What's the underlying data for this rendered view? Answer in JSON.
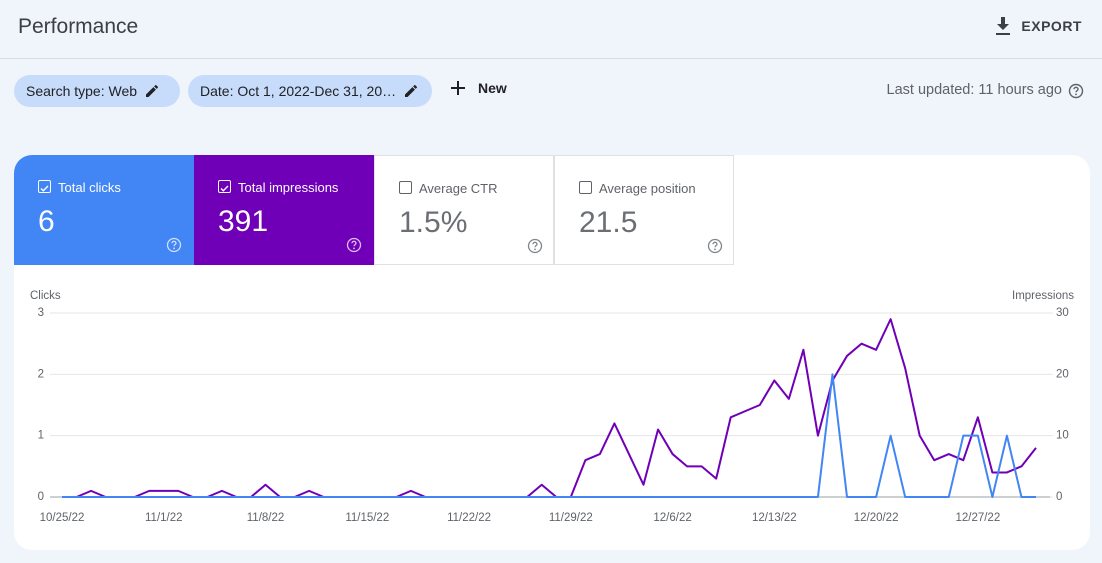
{
  "header": {
    "title": "Performance",
    "export": "EXPORT"
  },
  "filters": {
    "search_type": "Search type: Web",
    "date": "Date: Oct 1, 2022-Dec 31, 20…",
    "new": "New",
    "last_updated": "Last updated: 11 hours ago"
  },
  "metrics": [
    {
      "label": "Total clicks",
      "value": "6",
      "checked": true
    },
    {
      "label": "Total impressions",
      "value": "391",
      "checked": true
    },
    {
      "label": "Average CTR",
      "value": "1.5%",
      "checked": false
    },
    {
      "label": "Average position",
      "value": "21.5",
      "checked": false
    }
  ],
  "chart_data": {
    "type": "line",
    "x": [
      "10/25/22",
      "10/26/22",
      "10/27/22",
      "10/28/22",
      "10/29/22",
      "10/30/22",
      "10/31/22",
      "11/1/22",
      "11/2/22",
      "11/3/22",
      "11/4/22",
      "11/5/22",
      "11/6/22",
      "11/7/22",
      "11/8/22",
      "11/9/22",
      "11/10/22",
      "11/11/22",
      "11/12/22",
      "11/13/22",
      "11/14/22",
      "11/15/22",
      "11/16/22",
      "11/17/22",
      "11/18/22",
      "11/19/22",
      "11/20/22",
      "11/21/22",
      "11/22/22",
      "11/23/22",
      "11/24/22",
      "11/25/22",
      "11/26/22",
      "11/27/22",
      "11/28/22",
      "11/29/22",
      "11/30/22",
      "12/1/22",
      "12/2/22",
      "12/3/22",
      "12/4/22",
      "12/5/22",
      "12/6/22",
      "12/7/22",
      "12/8/22",
      "12/9/22",
      "12/10/22",
      "12/11/22",
      "12/12/22",
      "12/13/22",
      "12/14/22",
      "12/15/22",
      "12/16/22",
      "12/17/22",
      "12/18/22",
      "12/19/22",
      "12/20/22",
      "12/21/22",
      "12/22/22",
      "12/23/22",
      "12/24/22",
      "12/25/22",
      "12/26/22",
      "12/27/22",
      "12/28/22",
      "12/29/22",
      "12/30/22",
      "12/31/22"
    ],
    "xticks": [
      "10/25/22",
      "11/1/22",
      "11/8/22",
      "11/15/22",
      "11/22/22",
      "11/29/22",
      "12/6/22",
      "12/13/22",
      "12/20/22",
      "12/27/22"
    ],
    "ylim": [
      0,
      3
    ],
    "yticks": [
      0,
      1,
      2,
      3
    ],
    "y2lim": [
      0,
      30
    ],
    "y2ticks": [
      0,
      10,
      20,
      30
    ],
    "grid": true,
    "series": [
      {
        "name": "Clicks",
        "color": "#4285f4",
        "values": [
          0,
          0,
          0,
          0,
          0,
          0,
          0,
          0,
          0,
          0,
          0,
          0,
          0,
          0,
          0,
          0,
          0,
          0,
          0,
          0,
          0,
          0,
          0,
          0,
          0,
          0,
          0,
          0,
          0,
          0,
          0,
          0,
          0,
          0,
          0,
          0,
          0,
          0,
          0,
          0,
          0,
          0,
          0,
          0,
          0,
          0,
          0,
          0,
          0,
          0,
          0,
          0,
          0,
          2,
          0,
          0,
          0,
          1,
          0,
          0,
          0,
          0,
          1,
          1,
          0,
          1,
          0,
          0
        ]
      },
      {
        "name": "Impressions",
        "color": "#6f00b8",
        "axis": "y2",
        "values": [
          0,
          0,
          1,
          0,
          0,
          0,
          1,
          1,
          1,
          0,
          0,
          1,
          0,
          0,
          2,
          0,
          0,
          1,
          0,
          0,
          0,
          0,
          0,
          0,
          1,
          0,
          0,
          0,
          0,
          0,
          0,
          0,
          0,
          2,
          0,
          0,
          6,
          7,
          12,
          7,
          2,
          11,
          7,
          5,
          5,
          3,
          13,
          14,
          15,
          19,
          16,
          24,
          10,
          19,
          23,
          25,
          24,
          29,
          21,
          10,
          6,
          7,
          6,
          13,
          4,
          4,
          5,
          8
        ]
      }
    ]
  }
}
